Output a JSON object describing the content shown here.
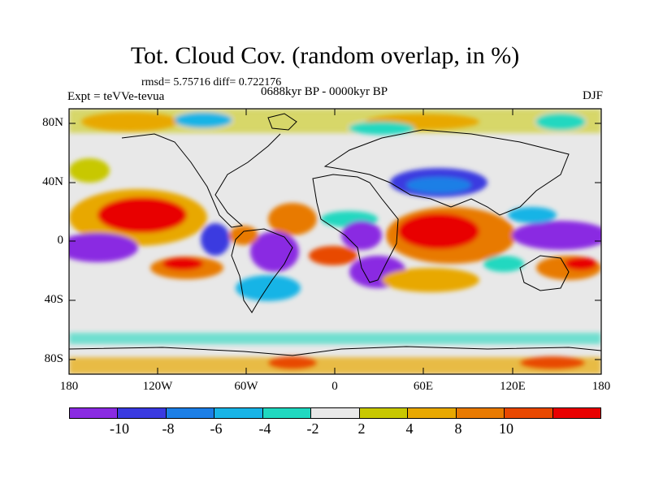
{
  "title": "Tot. Cloud Cov. (random overlap, in %)",
  "stats": "rmsd= 5.75716 diff= 0.722176",
  "experiment": "Expt = teVVe-tevua",
  "period": "0688kyr BP - 0000kyr BP",
  "season": "DJF",
  "map": {
    "projection": "cylindrical equidistant",
    "lon_range": [
      -180,
      180
    ],
    "lat_range": [
      -90,
      90
    ],
    "lat_ticks": [
      "80N",
      "40N",
      "0",
      "40S",
      "80S"
    ],
    "lon_ticks": [
      "180",
      "120W",
      "60W",
      "0",
      "60E",
      "120E",
      "180"
    ]
  },
  "colorbar": {
    "colors": [
      "#8a2be2",
      "#3a3ae0",
      "#1c7fe6",
      "#18b4e6",
      "#20d8c0",
      "#e8e8e8",
      "#c8c800",
      "#e8a800",
      "#e87a00",
      "#e84800",
      "#e80000"
    ],
    "labels": [
      "-10",
      "-8",
      "-6",
      "-4",
      "-2",
      "2",
      "4",
      "8",
      "10"
    ]
  }
}
